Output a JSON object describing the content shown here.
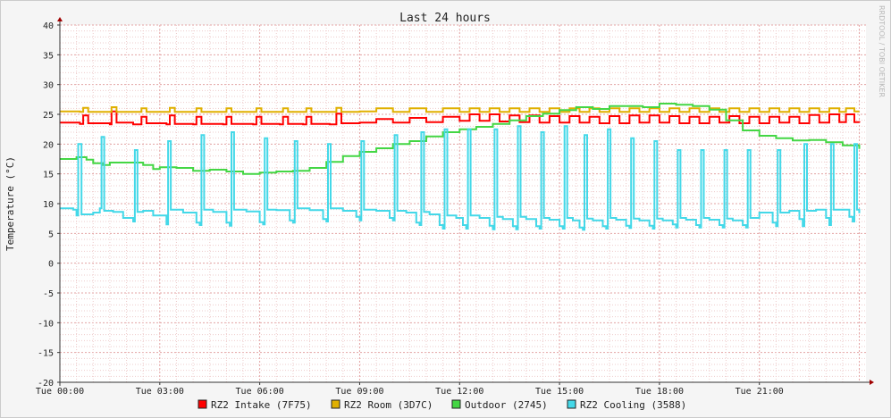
{
  "chart_data": {
    "type": "line",
    "title": "Last 24 hours",
    "ylabel": "Temperature (°C)",
    "xlabel": "",
    "watermark": "RRDTOOL / TOBI OETIKER",
    "ylim": [
      -20,
      40
    ],
    "y_ticks": [
      -20,
      -15,
      -10,
      -5,
      0,
      5,
      10,
      15,
      20,
      25,
      30,
      35,
      40
    ],
    "x_ticks": [
      "Tue 00:00",
      "Tue 03:00",
      "Tue 06:00",
      "Tue 09:00",
      "Tue 12:00",
      "Tue 15:00",
      "Tue 18:00",
      "Tue 21:00"
    ],
    "x_tick_hours": [
      0,
      3,
      6,
      9,
      12,
      15,
      18,
      21
    ],
    "xlim_hours": [
      0,
      24.2
    ],
    "grid": true,
    "legend_position": "bottom",
    "series": [
      {
        "name": "RZ2 Intake (7F75)",
        "color": "#ff0000",
        "x": [
          0,
          0.6,
          0.7,
          0.85,
          1.5,
          1.55,
          1.7,
          2.2,
          2.45,
          2.6,
          3.2,
          3.3,
          3.45,
          4.0,
          4.1,
          4.25,
          4.9,
          5.0,
          5.15,
          5.8,
          5.9,
          6.05,
          6.6,
          6.7,
          6.85,
          7.3,
          7.4,
          7.55,
          8.1,
          8.3,
          8.45,
          9.0,
          9.5,
          10.0,
          10.5,
          11.0,
          11.5,
          12.0,
          12.3,
          12.6,
          12.9,
          13.2,
          13.5,
          13.8,
          14.1,
          14.4,
          14.7,
          15.0,
          15.3,
          15.6,
          15.9,
          16.2,
          16.5,
          16.8,
          17.1,
          17.4,
          17.7,
          18.0,
          18.3,
          18.6,
          18.9,
          19.2,
          19.5,
          19.8,
          20.1,
          20.4,
          20.7,
          21.0,
          21.3,
          21.6,
          21.9,
          22.2,
          22.5,
          22.8,
          23.1,
          23.4,
          23.6,
          23.85,
          24.0
        ],
        "values": [
          23.6,
          23.4,
          24.8,
          23.5,
          23.3,
          25.5,
          23.6,
          23.3,
          24.6,
          23.5,
          23.3,
          24.8,
          23.4,
          23.3,
          24.6,
          23.4,
          23.3,
          24.6,
          23.4,
          23.3,
          24.6,
          23.4,
          23.3,
          24.6,
          23.4,
          23.3,
          24.6,
          23.4,
          23.3,
          25.1,
          23.5,
          23.6,
          24.2,
          23.6,
          24.4,
          23.7,
          24.6,
          23.9,
          25.0,
          23.9,
          25.0,
          23.8,
          24.8,
          23.7,
          24.8,
          23.6,
          24.7,
          23.6,
          24.7,
          23.6,
          24.6,
          23.5,
          24.7,
          23.5,
          24.8,
          23.6,
          24.8,
          23.6,
          24.7,
          23.5,
          24.6,
          23.5,
          24.6,
          23.6,
          24.7,
          23.5,
          24.6,
          23.5,
          24.6,
          23.6,
          24.6,
          23.5,
          24.9,
          23.6,
          25.0,
          23.7,
          25.0,
          23.7,
          23.6
        ]
      },
      {
        "name": "RZ2 Room (3D7C)",
        "color": "#e0b000",
        "x": [
          0,
          0.6,
          0.7,
          0.85,
          1.4,
          1.55,
          1.7,
          2.2,
          2.45,
          2.6,
          3.2,
          3.3,
          3.45,
          4.0,
          4.1,
          4.25,
          4.9,
          5.0,
          5.15,
          5.8,
          5.9,
          6.05,
          6.6,
          6.7,
          6.85,
          7.3,
          7.4,
          7.55,
          8.1,
          8.3,
          8.45,
          9.0,
          9.5,
          10.0,
          10.5,
          11.0,
          11.5,
          12.0,
          12.3,
          12.6,
          12.9,
          13.2,
          13.5,
          13.8,
          14.1,
          14.4,
          14.7,
          15.0,
          15.3,
          15.6,
          15.9,
          16.2,
          16.5,
          16.8,
          17.1,
          17.4,
          17.7,
          18.0,
          18.3,
          18.6,
          18.9,
          19.2,
          19.5,
          19.8,
          20.1,
          20.4,
          20.7,
          21.0,
          21.3,
          21.6,
          21.9,
          22.2,
          22.5,
          22.8,
          23.1,
          23.4,
          23.6,
          23.85,
          24.0
        ],
        "values": [
          25.5,
          25.4,
          26.1,
          25.4,
          25.4,
          26.2,
          25.4,
          25.4,
          26.0,
          25.4,
          25.4,
          26.1,
          25.4,
          25.4,
          26.0,
          25.4,
          25.4,
          26.0,
          25.4,
          25.4,
          26.0,
          25.4,
          25.4,
          26.0,
          25.4,
          25.4,
          26.0,
          25.4,
          25.4,
          26.1,
          25.4,
          25.5,
          26.0,
          25.4,
          26.0,
          25.4,
          26.0,
          25.4,
          26.0,
          25.4,
          26.0,
          25.4,
          26.0,
          25.4,
          26.0,
          25.4,
          26.0,
          25.4,
          26.0,
          25.4,
          26.0,
          25.4,
          26.0,
          25.4,
          26.0,
          25.4,
          26.0,
          25.4,
          26.0,
          25.4,
          26.0,
          25.4,
          26.0,
          25.4,
          26.0,
          25.4,
          26.0,
          25.4,
          26.0,
          25.4,
          26.0,
          25.4,
          26.0,
          25.4,
          26.0,
          25.4,
          26.0,
          25.5,
          25.5
        ]
      },
      {
        "name": "Outdoor (2745)",
        "color": "#44d644",
        "x": [
          0,
          0.5,
          0.8,
          1.0,
          1.3,
          1.5,
          2.0,
          2.5,
          2.8,
          3.0,
          3.5,
          4.0,
          4.5,
          5.0,
          5.5,
          6.0,
          6.5,
          7.0,
          7.5,
          8.0,
          8.5,
          9.0,
          9.5,
          10.0,
          10.5,
          11.0,
          11.5,
          12.0,
          12.5,
          13.0,
          13.5,
          14.0,
          14.5,
          15.0,
          15.5,
          16.0,
          16.5,
          17.0,
          17.5,
          18.0,
          18.5,
          19.0,
          19.5,
          20.0,
          20.5,
          21.0,
          21.5,
          22.0,
          22.5,
          23.0,
          23.5,
          24.0
        ],
        "values": [
          17.5,
          17.8,
          17.4,
          16.8,
          16.5,
          16.9,
          16.9,
          16.5,
          15.8,
          16.1,
          16.0,
          15.5,
          15.7,
          15.4,
          15.0,
          15.2,
          15.4,
          15.5,
          16.0,
          17.0,
          18.0,
          18.7,
          19.3,
          20.0,
          20.5,
          21.3,
          22.0,
          22.5,
          22.9,
          23.4,
          24.0,
          24.7,
          25.1,
          25.7,
          26.2,
          25.9,
          26.4,
          26.4,
          26.2,
          26.8,
          26.6,
          26.4,
          25.8,
          24.0,
          22.3,
          21.4,
          21.0,
          20.6,
          20.7,
          20.3,
          19.8,
          19.2
        ]
      },
      {
        "name": "RZ2 Cooling (3588)",
        "color": "#44d8e8",
        "x": [
          0,
          0.4,
          0.5,
          0.55,
          0.65,
          1.0,
          1.2,
          1.25,
          1.33,
          1.6,
          1.9,
          2.2,
          2.25,
          2.33,
          2.5,
          2.8,
          3.2,
          3.25,
          3.33,
          3.7,
          4.1,
          4.2,
          4.25,
          4.33,
          4.6,
          5.0,
          5.1,
          5.15,
          5.23,
          5.6,
          6.0,
          6.1,
          6.15,
          6.23,
          6.5,
          6.9,
          7.0,
          7.05,
          7.13,
          7.5,
          7.9,
          8.0,
          8.05,
          8.13,
          8.5,
          8.9,
          9.0,
          9.05,
          9.13,
          9.5,
          9.9,
          10.0,
          10.05,
          10.13,
          10.4,
          10.7,
          10.8,
          10.85,
          10.93,
          11.1,
          11.4,
          11.5,
          11.55,
          11.63,
          11.9,
          12.1,
          12.2,
          12.25,
          12.33,
          12.6,
          12.9,
          13.0,
          13.05,
          13.13,
          13.3,
          13.6,
          13.7,
          13.75,
          13.83,
          14.0,
          14.3,
          14.4,
          14.45,
          14.53,
          14.7,
          15.0,
          15.1,
          15.15,
          15.23,
          15.4,
          15.6,
          15.7,
          15.75,
          15.83,
          16.0,
          16.3,
          16.4,
          16.45,
          16.53,
          16.7,
          17.0,
          17.1,
          17.15,
          17.23,
          17.4,
          17.7,
          17.8,
          17.85,
          17.93,
          18.1,
          18.4,
          18.5,
          18.55,
          18.63,
          18.8,
          19.1,
          19.2,
          19.25,
          19.33,
          19.5,
          19.8,
          19.9,
          19.95,
          20.03,
          20.2,
          20.5,
          20.6,
          20.65,
          20.73,
          21.0,
          21.4,
          21.5,
          21.55,
          21.63,
          21.9,
          22.2,
          22.3,
          22.35,
          22.43,
          22.7,
          23.0,
          23.1,
          23.15,
          23.23,
          23.5,
          23.7,
          23.8,
          23.85,
          23.93,
          24.0
        ],
        "values": [
          9.2,
          9.0,
          8.0,
          20.0,
          8.2,
          8.5,
          9.2,
          21.2,
          8.8,
          8.6,
          7.6,
          7.0,
          19.0,
          8.6,
          8.8,
          8.0,
          6.5,
          20.5,
          9.0,
          8.5,
          6.8,
          6.4,
          21.5,
          9.0,
          8.6,
          6.8,
          6.3,
          22.0,
          9.0,
          8.7,
          6.9,
          6.5,
          21.0,
          9.0,
          8.9,
          7.2,
          6.8,
          20.5,
          9.2,
          8.9,
          7.4,
          7.0,
          20.0,
          9.2,
          8.8,
          7.8,
          7.2,
          20.5,
          9.0,
          8.8,
          7.6,
          7.2,
          21.5,
          8.8,
          8.5,
          6.8,
          6.4,
          22.0,
          8.6,
          8.2,
          6.4,
          5.8,
          22.5,
          8.0,
          7.6,
          6.4,
          5.8,
          22.5,
          8.0,
          7.6,
          6.3,
          5.7,
          22.5,
          7.8,
          7.4,
          6.2,
          5.7,
          23.0,
          7.8,
          7.4,
          6.2,
          5.8,
          22.0,
          7.6,
          7.3,
          6.2,
          5.8,
          23.0,
          7.6,
          7.2,
          6.0,
          5.6,
          21.5,
          7.5,
          7.2,
          6.2,
          5.8,
          22.5,
          7.6,
          7.3,
          6.3,
          5.9,
          21.0,
          7.5,
          7.2,
          6.3,
          5.8,
          20.5,
          7.5,
          7.2,
          6.5,
          6.0,
          19.0,
          7.6,
          7.3,
          6.4,
          6.0,
          19.0,
          7.6,
          7.3,
          6.4,
          6.0,
          19.0,
          7.5,
          7.2,
          6.4,
          6.0,
          19.0,
          7.6,
          8.5,
          6.8,
          6.2,
          19.0,
          8.5,
          8.8,
          7.4,
          6.2,
          20.0,
          8.8,
          9.0,
          7.6,
          6.4,
          20.0,
          9.0,
          9.0,
          7.8,
          7.0,
          20.0,
          9.0,
          8.4
        ]
      }
    ]
  }
}
